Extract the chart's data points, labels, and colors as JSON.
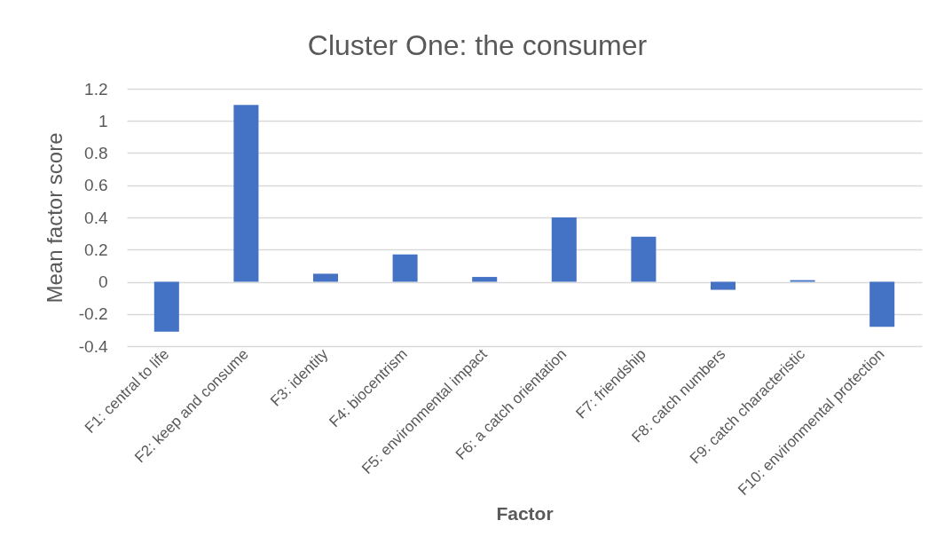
{
  "chart_data": {
    "type": "bar",
    "title": "Cluster One: the consumer",
    "xlabel": "Factor",
    "ylabel": "Mean factor score",
    "categories": [
      "F1: central to life",
      "F2: keep and consume",
      "F3: identity",
      "F4: biocentrism",
      "F5: environmental impact",
      "F6: a catch orientation",
      "F7: friendship",
      "F8: catch numbers",
      "F9: catch characteristic",
      "F10: environmental protection"
    ],
    "values": [
      -0.31,
      1.1,
      0.05,
      0.17,
      0.03,
      0.4,
      0.28,
      -0.05,
      0.01,
      -0.28
    ],
    "color": "#4472c4",
    "ylim": [
      -0.4,
      1.2
    ],
    "yticks": [
      -0.4,
      -0.2,
      0,
      0.2,
      0.4,
      0.6,
      0.8,
      1,
      1.2
    ],
    "grid": "y"
  }
}
